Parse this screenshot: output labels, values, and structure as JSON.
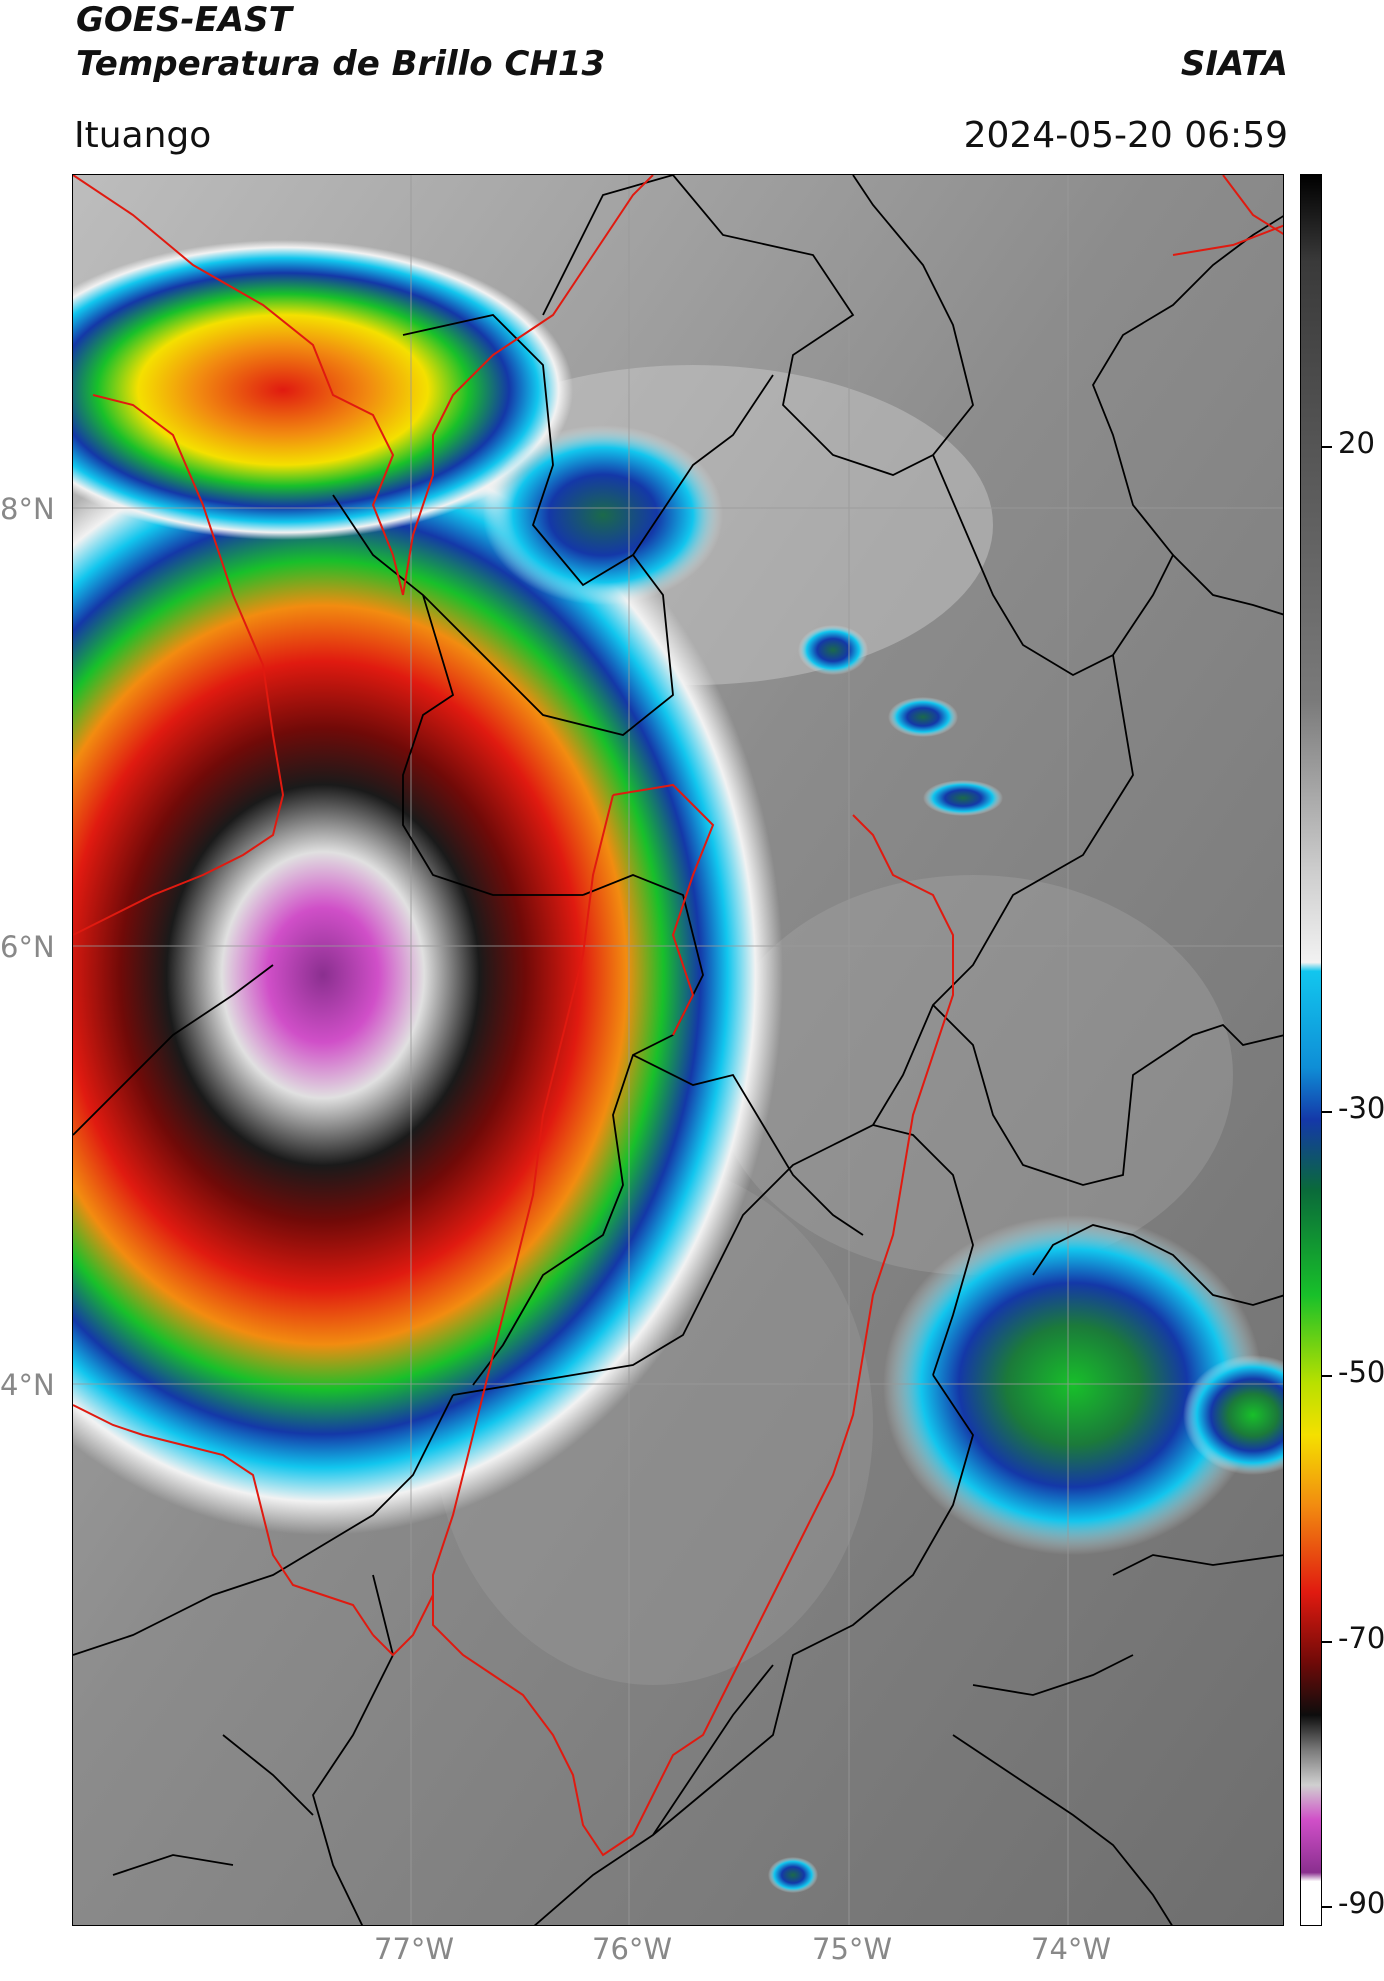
{
  "header": {
    "line1": "GOES-EAST",
    "line2": "Temperatura de Brillo CH13",
    "agency": "SIATA",
    "location": "Ituango",
    "datetime": "2024-05-20 06:59"
  },
  "map": {
    "lat_labels": [
      "8°N",
      "6°N",
      "4°N"
    ],
    "lon_labels": [
      "77°W",
      "76°W",
      "75°W",
      "74°W"
    ],
    "lat_values": [
      8,
      6,
      4
    ],
    "lon_values": [
      -77,
      -76,
      -75,
      -74
    ]
  },
  "colorbar": {
    "ticks": [
      "20",
      "-30",
      "-50",
      "-70",
      "-90"
    ],
    "tick_values": [
      20,
      -30,
      -50,
      -70,
      -90
    ],
    "range": [
      -90,
      45
    ],
    "colors": {
      "warm_gray": "#7a7a7a",
      "light": "#f2f2f2",
      "cyan": "#12c6ee",
      "blue": "#1438a8",
      "green": "#18c02a",
      "yellow": "#f4e000",
      "orange": "#f28c10",
      "red": "#e01a10",
      "dark_red": "#700a08",
      "black": "#0d0d0d",
      "magenta": "#d04fc8",
      "purple": "#8a2f8f"
    }
  }
}
